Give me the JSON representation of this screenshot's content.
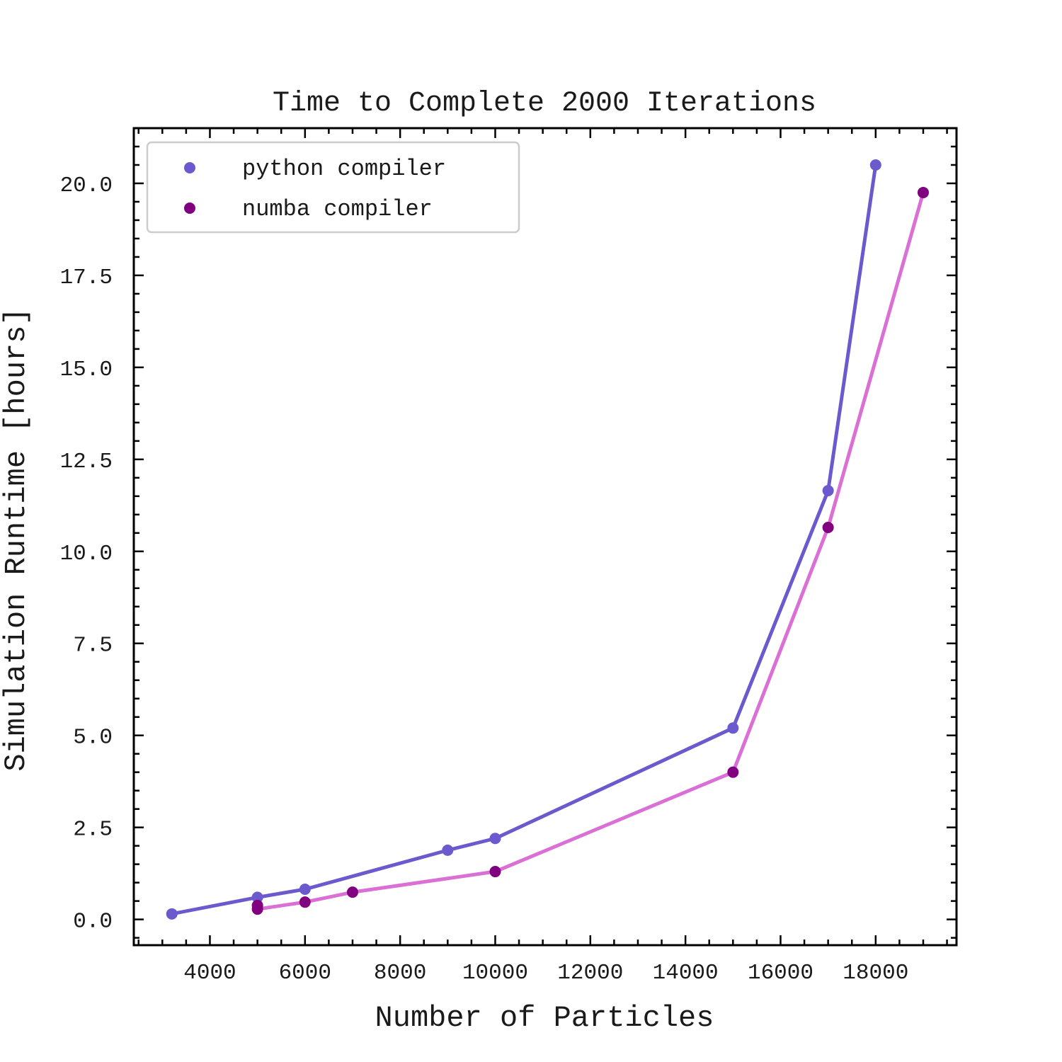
{
  "chart_data": {
    "type": "line",
    "title": "Time to Complete 2000 Iterations",
    "xlabel": "Number of Particles",
    "ylabel": "Simulation Runtime [hours]",
    "xlim": [
      2400,
      19700
    ],
    "ylim": [
      -0.7,
      21.5
    ],
    "xticks": [
      4000,
      6000,
      8000,
      10000,
      12000,
      14000,
      16000,
      18000
    ],
    "xtick_labels": [
      "4000",
      "6000",
      "8000",
      "10000",
      "12000",
      "14000",
      "16000",
      "18000"
    ],
    "yticks": [
      0,
      2.5,
      5,
      7.5,
      10,
      12.5,
      15,
      17.5,
      20
    ],
    "ytick_labels": [
      "0.0",
      "2.5",
      "5.0",
      "7.5",
      "10.0",
      "12.5",
      "15.0",
      "17.5",
      "20.0"
    ],
    "legend_position": "top-left",
    "grid": false,
    "series": [
      {
        "name": "python compiler",
        "marker_color": "#6a5acd",
        "line_color": "#6a5acd",
        "points": [
          {
            "x": 3200,
            "y": 0.15
          },
          {
            "x": 5000,
            "y": 0.6
          },
          {
            "x": 6000,
            "y": 0.82
          },
          {
            "x": 9000,
            "y": 1.88
          },
          {
            "x": 10000,
            "y": 2.2
          },
          {
            "x": 15000,
            "y": 5.2
          },
          {
            "x": 17000,
            "y": 11.65
          },
          {
            "x": 18000,
            "y": 20.5
          }
        ]
      },
      {
        "name": "numba compiler",
        "marker_color": "#800080",
        "line_color": "#da70d6",
        "points": [
          {
            "x": 5000,
            "y": 0.38
          },
          {
            "x": 5000,
            "y": 0.28
          },
          {
            "x": 6000,
            "y": 0.47
          },
          {
            "x": 7000,
            "y": 0.74
          },
          {
            "x": 10000,
            "y": 1.3
          },
          {
            "x": 15000,
            "y": 4.0
          },
          {
            "x": 17000,
            "y": 10.65
          },
          {
            "x": 19000,
            "y": 19.75
          }
        ]
      }
    ]
  }
}
